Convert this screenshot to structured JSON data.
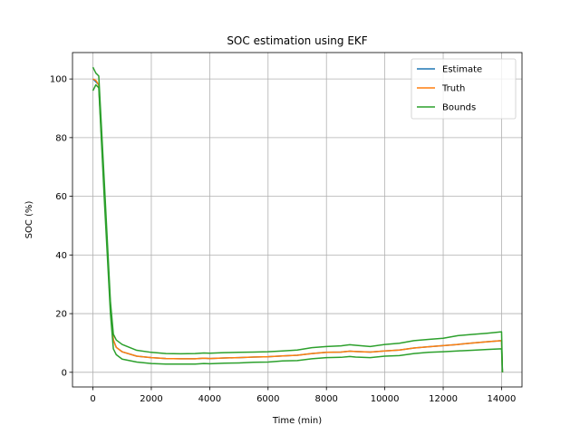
{
  "chart_data": {
    "type": "line",
    "title": "SOC estimation using EKF",
    "xlabel": "Time (min)",
    "ylabel": "SOC (%)",
    "xlim": [
      -700,
      14700
    ],
    "ylim": [
      -5,
      109
    ],
    "xticks": [
      0,
      2000,
      4000,
      6000,
      8000,
      10000,
      12000,
      14000
    ],
    "yticks": [
      0,
      20,
      40,
      60,
      80,
      100
    ],
    "grid": true,
    "legend_position": "top-right",
    "series": [
      {
        "name": "Estimate",
        "color": "#1f77b4",
        "points": [
          [
            0,
            100
          ],
          [
            100,
            99
          ],
          [
            200,
            98
          ],
          [
            400,
            60
          ],
          [
            600,
            22
          ],
          [
            700,
            11
          ],
          [
            800,
            8.5
          ],
          [
            1000,
            7
          ],
          [
            1500,
            5.5
          ],
          [
            2000,
            5.0
          ],
          [
            2500,
            4.7
          ],
          [
            3000,
            4.6
          ],
          [
            3500,
            4.6
          ],
          [
            3800,
            4.8
          ],
          [
            4000,
            4.7
          ],
          [
            4500,
            4.9
          ],
          [
            5000,
            5.0
          ],
          [
            5500,
            5.2
          ],
          [
            6000,
            5.3
          ],
          [
            6500,
            5.6
          ],
          [
            7000,
            5.8
          ],
          [
            7500,
            6.4
          ],
          [
            8000,
            6.8
          ],
          [
            8500,
            6.9
          ],
          [
            8800,
            7.2
          ],
          [
            9000,
            7.1
          ],
          [
            9500,
            6.9
          ],
          [
            10000,
            7.3
          ],
          [
            10500,
            7.6
          ],
          [
            11000,
            8.3
          ],
          [
            11500,
            8.7
          ],
          [
            12000,
            9.1
          ],
          [
            12500,
            9.5
          ],
          [
            13000,
            10.0
          ],
          [
            13500,
            10.4
          ],
          [
            14000,
            10.8
          ],
          [
            14030,
            0
          ]
        ]
      },
      {
        "name": "Truth",
        "color": "#ff7f0e",
        "points": [
          [
            0,
            100
          ],
          [
            100,
            99.5
          ],
          [
            200,
            98
          ],
          [
            400,
            60
          ],
          [
            600,
            22
          ],
          [
            700,
            11
          ],
          [
            800,
            8.5
          ],
          [
            1000,
            7
          ],
          [
            1500,
            5.5
          ],
          [
            2000,
            5.0
          ],
          [
            2500,
            4.7
          ],
          [
            3000,
            4.6
          ],
          [
            3500,
            4.6
          ],
          [
            3800,
            4.8
          ],
          [
            4000,
            4.7
          ],
          [
            4500,
            4.9
          ],
          [
            5000,
            5.0
          ],
          [
            5500,
            5.2
          ],
          [
            6000,
            5.3
          ],
          [
            6500,
            5.6
          ],
          [
            7000,
            5.8
          ],
          [
            7500,
            6.4
          ],
          [
            8000,
            6.8
          ],
          [
            8500,
            6.9
          ],
          [
            8800,
            7.2
          ],
          [
            9000,
            7.1
          ],
          [
            9500,
            6.9
          ],
          [
            10000,
            7.3
          ],
          [
            10500,
            7.6
          ],
          [
            11000,
            8.3
          ],
          [
            11500,
            8.7
          ],
          [
            12000,
            9.1
          ],
          [
            12500,
            9.5
          ],
          [
            13000,
            10.0
          ],
          [
            13500,
            10.4
          ],
          [
            14000,
            10.8
          ],
          [
            14030,
            0
          ]
        ]
      },
      {
        "name": "Bounds",
        "color": "#2ca02c",
        "points": [
          [
            0,
            104
          ],
          [
            100,
            102
          ],
          [
            200,
            101
          ],
          [
            400,
            63
          ],
          [
            600,
            24
          ],
          [
            700,
            13
          ],
          [
            800,
            11
          ],
          [
            1000,
            9.5
          ],
          [
            1500,
            7.5
          ],
          [
            2000,
            6.8
          ],
          [
            2500,
            6.4
          ],
          [
            3000,
            6.3
          ],
          [
            3500,
            6.4
          ],
          [
            3800,
            6.6
          ],
          [
            4000,
            6.5
          ],
          [
            4500,
            6.7
          ],
          [
            5000,
            6.8
          ],
          [
            5500,
            6.9
          ],
          [
            6000,
            7.0
          ],
          [
            6500,
            7.3
          ],
          [
            7000,
            7.6
          ],
          [
            7500,
            8.4
          ],
          [
            8000,
            8.8
          ],
          [
            8500,
            9.0
          ],
          [
            8800,
            9.4
          ],
          [
            9000,
            9.2
          ],
          [
            9500,
            8.8
          ],
          [
            10000,
            9.5
          ],
          [
            10500,
            9.9
          ],
          [
            11000,
            10.8
          ],
          [
            11500,
            11.2
          ],
          [
            12000,
            11.6
          ],
          [
            12500,
            12.5
          ],
          [
            13000,
            12.9
          ],
          [
            13500,
            13.3
          ],
          [
            14000,
            13.8
          ],
          [
            14030,
            0
          ]
        ],
        "points_lower": [
          [
            0,
            96
          ],
          [
            100,
            98
          ],
          [
            200,
            97
          ],
          [
            400,
            57
          ],
          [
            600,
            20
          ],
          [
            700,
            8
          ],
          [
            800,
            6.0
          ],
          [
            1000,
            4.5
          ],
          [
            1500,
            3.5
          ],
          [
            2000,
            3.0
          ],
          [
            2500,
            2.8
          ],
          [
            3000,
            2.8
          ],
          [
            3500,
            2.8
          ],
          [
            3800,
            3.0
          ],
          [
            4000,
            2.9
          ],
          [
            4500,
            3.1
          ],
          [
            5000,
            3.2
          ],
          [
            5500,
            3.4
          ],
          [
            6000,
            3.5
          ],
          [
            6500,
            3.9
          ],
          [
            7000,
            4.0
          ],
          [
            7500,
            4.6
          ],
          [
            8000,
            5.0
          ],
          [
            8500,
            5.1
          ],
          [
            8800,
            5.4
          ],
          [
            9000,
            5.2
          ],
          [
            9500,
            5.0
          ],
          [
            10000,
            5.5
          ],
          [
            10500,
            5.7
          ],
          [
            11000,
            6.4
          ],
          [
            11500,
            6.8
          ],
          [
            12000,
            7.0
          ],
          [
            12500,
            7.3
          ],
          [
            13000,
            7.5
          ],
          [
            13500,
            7.8
          ],
          [
            14000,
            8.0
          ],
          [
            14030,
            0
          ]
        ]
      }
    ]
  }
}
